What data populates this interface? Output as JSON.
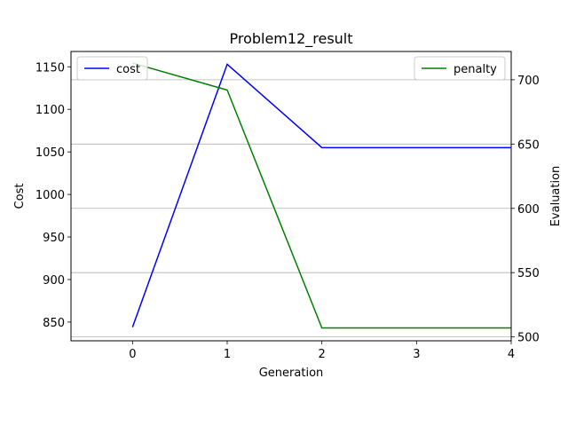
{
  "chart_data": {
    "type": "line",
    "title": "Problem12_result",
    "xlabel": "Generation",
    "ylabel_left": "Cost",
    "ylabel_right": "Evaluation",
    "x": [
      0,
      1,
      2,
      3,
      4
    ],
    "xlim": [
      -0.65,
      4
    ],
    "x_ticks": [
      0,
      1,
      2,
      3,
      4
    ],
    "ylim_left": [
      828,
      1168
    ],
    "y_ticks_left": [
      850,
      900,
      950,
      1000,
      1050,
      1100,
      1150
    ],
    "ylim_right": [
      497,
      722
    ],
    "y_ticks_right": [
      500,
      550,
      600,
      650,
      700
    ],
    "grid": "horizontal (right axis)",
    "series": [
      {
        "name": "cost",
        "axis": "left",
        "color": "#0000ff",
        "values": [
          844,
          1153,
          1055,
          1055,
          1055
        ]
      },
      {
        "name": "penalty",
        "axis": "right",
        "color": "#008000",
        "values": [
          713,
          692,
          507,
          507,
          507
        ]
      }
    ],
    "legends": [
      {
        "series": "cost",
        "placement": "upper left"
      },
      {
        "series": "penalty",
        "placement": "upper right"
      }
    ]
  }
}
